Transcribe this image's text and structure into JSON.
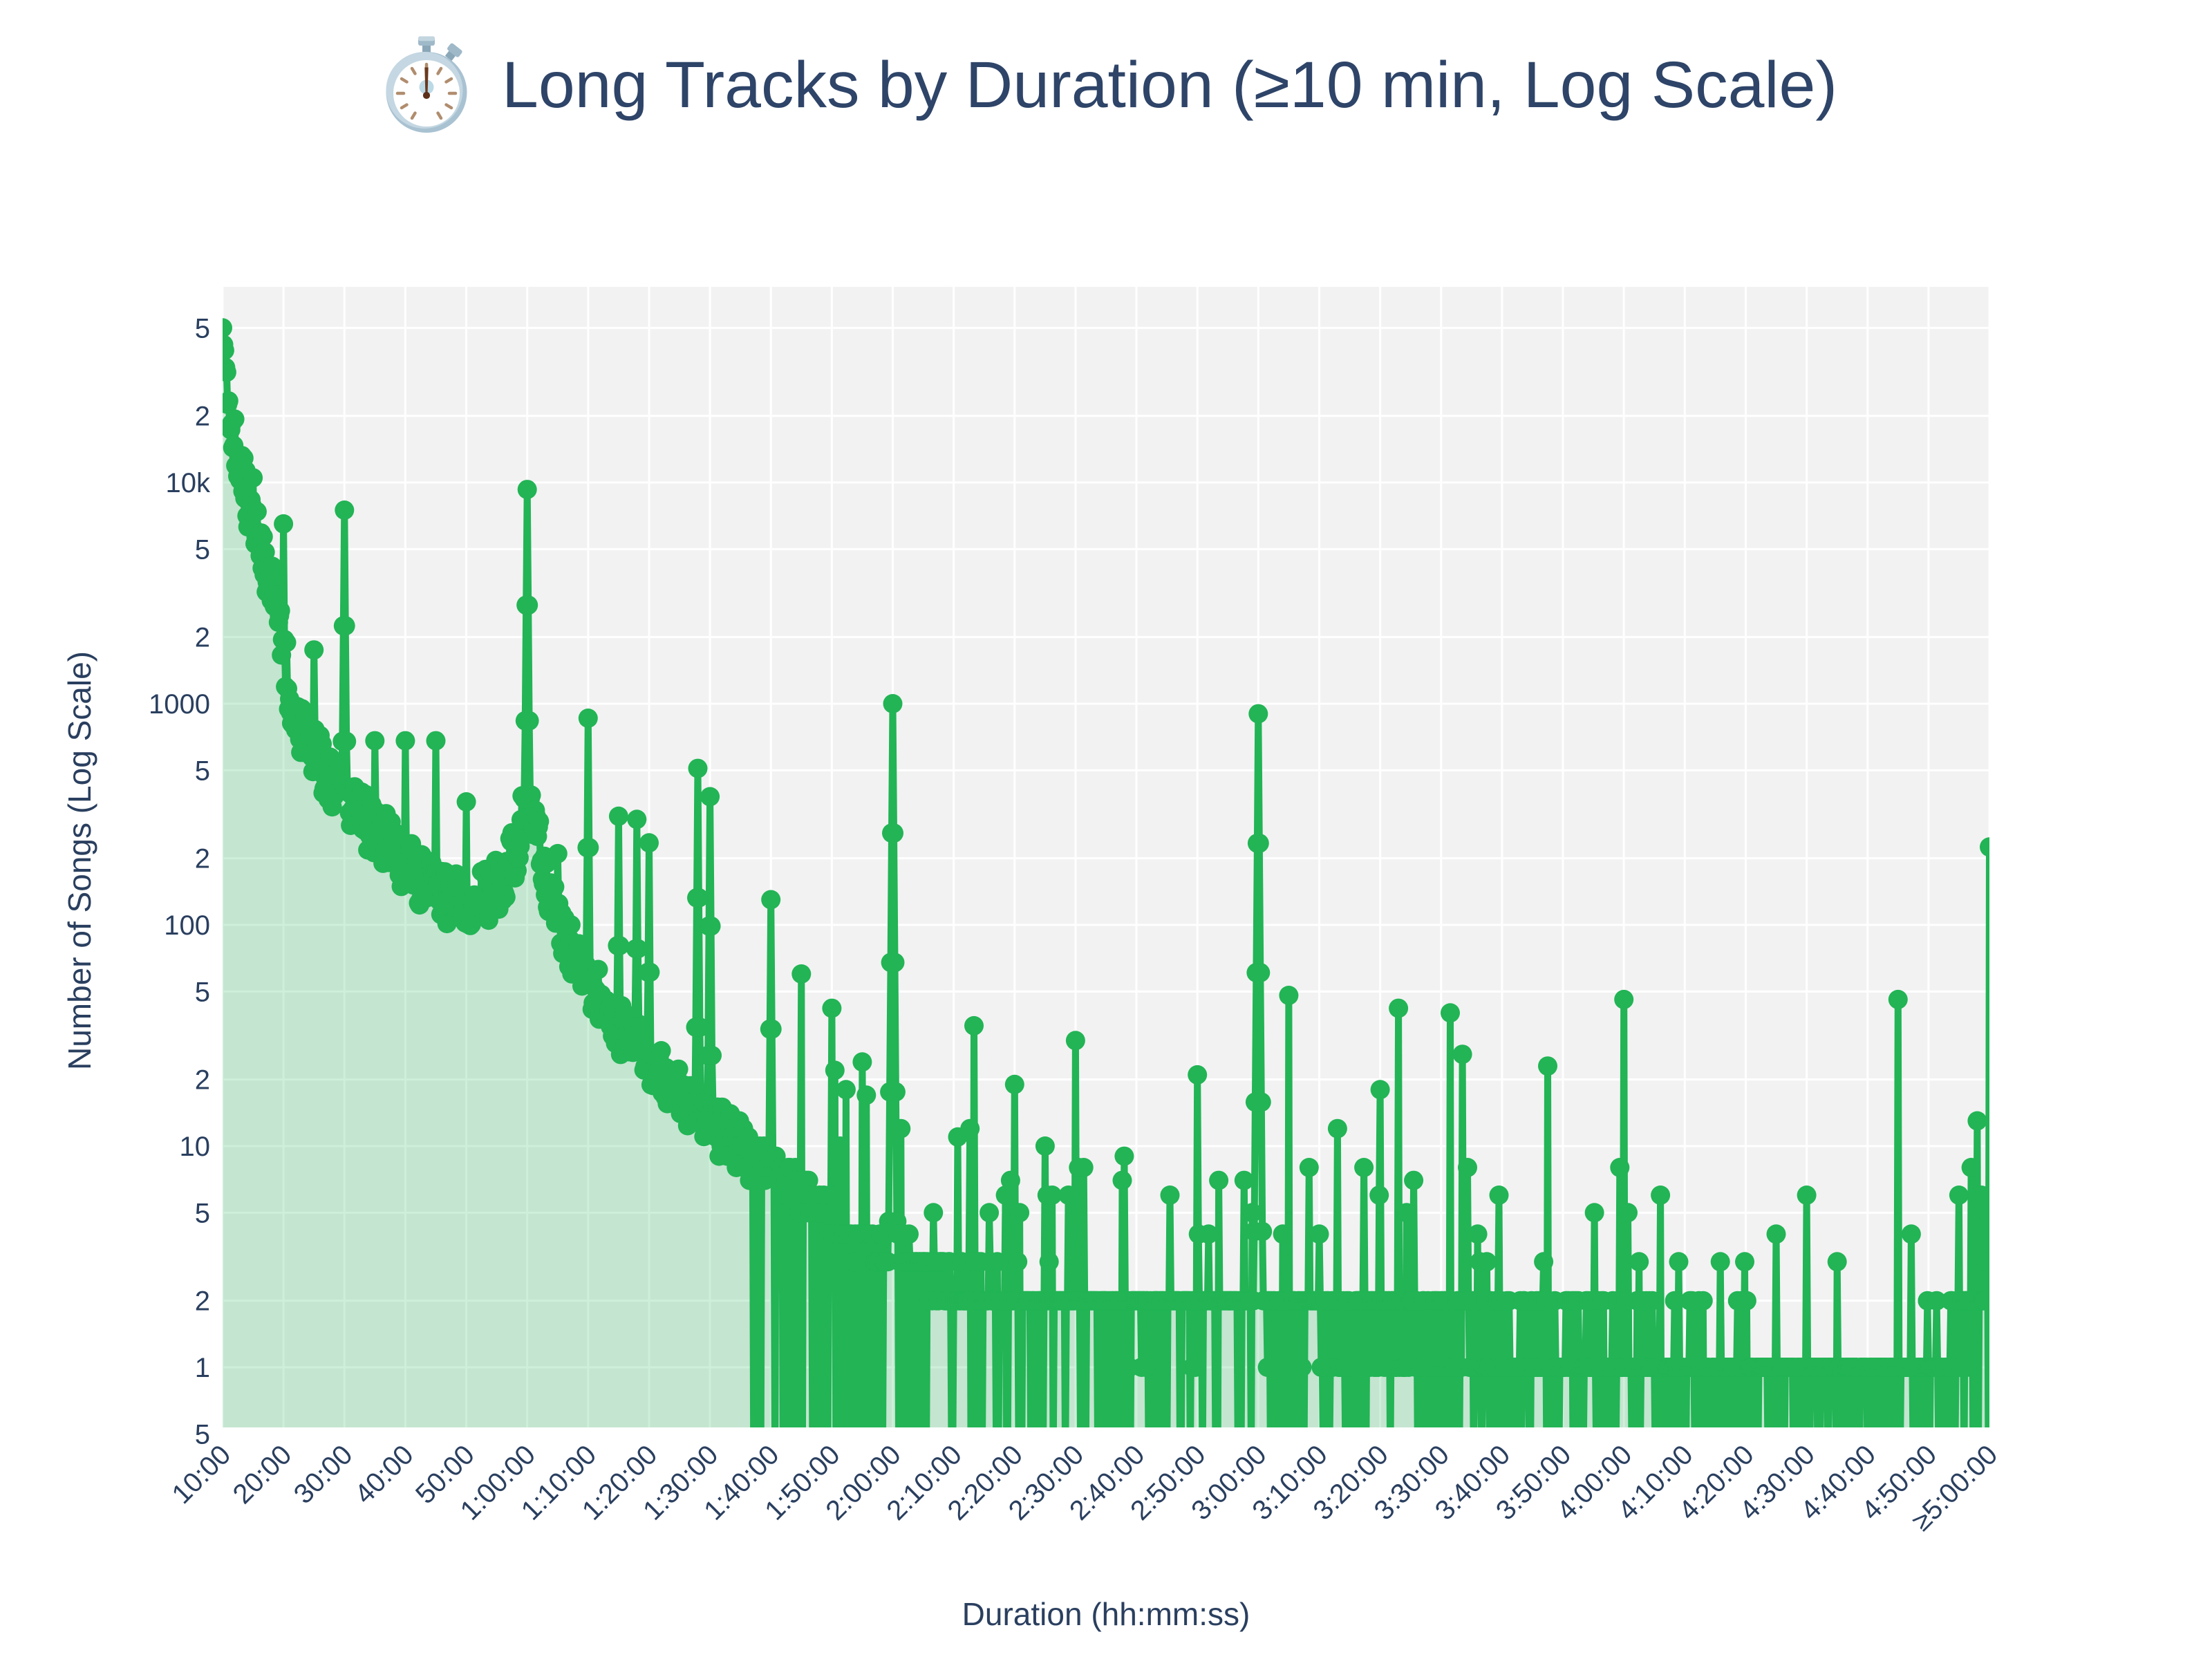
{
  "title": {
    "icon": "stopwatch",
    "text": "Long Tracks by Duration (≥10 min, Log Scale)"
  },
  "axes": {
    "x": {
      "title": "Duration (hh:mm:ss)",
      "tick_angle_deg": -45,
      "ticks": [
        {
          "s": 600,
          "label": "10:00"
        },
        {
          "s": 1200,
          "label": "20:00"
        },
        {
          "s": 1800,
          "label": "30:00"
        },
        {
          "s": 2400,
          "label": "40:00"
        },
        {
          "s": 3000,
          "label": "50:00"
        },
        {
          "s": 3600,
          "label": "1:00:00"
        },
        {
          "s": 4200,
          "label": "1:10:00"
        },
        {
          "s": 4800,
          "label": "1:20:00"
        },
        {
          "s": 5400,
          "label": "1:30:00"
        },
        {
          "s": 6000,
          "label": "1:40:00"
        },
        {
          "s": 6600,
          "label": "1:50:00"
        },
        {
          "s": 7200,
          "label": "2:00:00"
        },
        {
          "s": 7800,
          "label": "2:10:00"
        },
        {
          "s": 8400,
          "label": "2:20:00"
        },
        {
          "s": 9000,
          "label": "2:30:00"
        },
        {
          "s": 9600,
          "label": "2:40:00"
        },
        {
          "s": 10200,
          "label": "2:50:00"
        },
        {
          "s": 10800,
          "label": "3:00:00"
        },
        {
          "s": 11400,
          "label": "3:10:00"
        },
        {
          "s": 12000,
          "label": "3:20:00"
        },
        {
          "s": 12600,
          "label": "3:30:00"
        },
        {
          "s": 13200,
          "label": "3:40:00"
        },
        {
          "s": 13800,
          "label": "3:50:00"
        },
        {
          "s": 14400,
          "label": "4:00:00"
        },
        {
          "s": 15000,
          "label": "4:10:00"
        },
        {
          "s": 15600,
          "label": "4:20:00"
        },
        {
          "s": 16200,
          "label": "4:30:00"
        },
        {
          "s": 16800,
          "label": "4:40:00"
        },
        {
          "s": 17400,
          "label": "4:50:00"
        },
        {
          "s": 18000,
          "label": "≥5:00:00"
        }
      ]
    },
    "y": {
      "title": "Number of Songs (Log Scale)",
      "scale": "log",
      "ticks": [
        {
          "v": 50000,
          "label": "5"
        },
        {
          "v": 20000,
          "label": "2"
        },
        {
          "v": 10000,
          "label": "10k"
        },
        {
          "v": 5000,
          "label": "5"
        },
        {
          "v": 2000,
          "label": "2"
        },
        {
          "v": 1000,
          "label": "1000"
        },
        {
          "v": 500,
          "label": "5"
        },
        {
          "v": 200,
          "label": "2"
        },
        {
          "v": 100,
          "label": "100"
        },
        {
          "v": 50,
          "label": "5"
        },
        {
          "v": 20,
          "label": "2"
        },
        {
          "v": 10,
          "label": "10"
        },
        {
          "v": 5,
          "label": "5"
        },
        {
          "v": 2,
          "label": "2"
        },
        {
          "v": 1,
          "label": "1"
        },
        {
          "v": 0.5,
          "label": "5"
        }
      ]
    }
  },
  "colors": {
    "paper_bg": "#ffffff",
    "plot_bg": "#f2f2f2",
    "grid": "#ffffff",
    "line": "#22b455",
    "fill": "rgba(34,180,85,0.22)",
    "text": "#2a3f5f",
    "title_text": "#2e4468"
  },
  "chart_data": {
    "type": "line",
    "mode": "lines+markers+area",
    "title": "⏱️ Long Tracks by Duration (≥10 min, Log Scale)",
    "xlabel": "Duration (hh:mm:ss)",
    "ylabel": "Number of Songs (Log Scale)",
    "x_unit": "seconds of track duration",
    "bin_seconds": 10,
    "x_range": [
      600,
      18000
    ],
    "y_axis_log": true,
    "y_view_range": [
      0.53,
      77000
    ],
    "grid": true,
    "legend": false,
    "envelope_points": [
      [
        600,
        50000
      ],
      [
        615,
        41000
      ],
      [
        630,
        34000
      ],
      [
        650,
        27000
      ],
      [
        675,
        21500
      ],
      [
        700,
        17800
      ],
      [
        730,
        14600
      ],
      [
        760,
        12400
      ],
      [
        790,
        10700
      ],
      [
        820,
        9300
      ],
      [
        850,
        8200
      ],
      [
        880,
        7300
      ],
      [
        910,
        6500
      ],
      [
        950,
        5600
      ],
      [
        990,
        4850
      ],
      [
        1030,
        4150
      ],
      [
        1070,
        3500
      ],
      [
        1110,
        2900
      ],
      [
        1150,
        2350
      ],
      [
        1190,
        1850
      ],
      [
        1230,
        1420
      ],
      [
        1270,
        1120
      ],
      [
        1320,
        900
      ],
      [
        1380,
        770
      ],
      [
        1440,
        670
      ],
      [
        1520,
        580
      ],
      [
        1600,
        520
      ],
      [
        1700,
        440
      ],
      [
        1800,
        375
      ],
      [
        1900,
        330
      ],
      [
        2000,
        300
      ],
      [
        2100,
        280
      ],
      [
        2200,
        250
      ],
      [
        2300,
        215
      ],
      [
        2400,
        190
      ],
      [
        2520,
        163
      ],
      [
        2640,
        148
      ],
      [
        2760,
        138
      ],
      [
        2880,
        131
      ],
      [
        3000,
        132
      ],
      [
        3120,
        135
      ],
      [
        3240,
        142
      ],
      [
        3360,
        165
      ],
      [
        3480,
        215
      ],
      [
        3560,
        300
      ],
      [
        3600,
        335
      ],
      [
        3650,
        290
      ],
      [
        3720,
        225
      ],
      [
        3790,
        165
      ],
      [
        3860,
        122
      ],
      [
        3960,
        92
      ],
      [
        4060,
        74
      ],
      [
        4160,
        61
      ],
      [
        4260,
        51
      ],
      [
        4380,
        42
      ],
      [
        4500,
        35
      ],
      [
        4620,
        30
      ],
      [
        4740,
        26
      ],
      [
        4860,
        22.5
      ],
      [
        4980,
        19.5
      ],
      [
        5100,
        17
      ],
      [
        5220,
        15.2
      ],
      [
        5340,
        13.8
      ],
      [
        5460,
        12.4
      ],
      [
        5580,
        11
      ],
      [
        5700,
        9.9
      ],
      [
        5820,
        8.9
      ],
      [
        5940,
        8
      ],
      [
        6060,
        7.2
      ],
      [
        6180,
        6.5
      ],
      [
        6300,
        5.9
      ],
      [
        6420,
        5.3
      ],
      [
        6540,
        4.8
      ],
      [
        6660,
        4.4
      ],
      [
        6780,
        4.0
      ],
      [
        6900,
        3.7
      ],
      [
        7020,
        3.4
      ],
      [
        7140,
        3.2
      ],
      [
        7260,
        3.2
      ],
      [
        7380,
        3.0
      ],
      [
        7500,
        2.8
      ],
      [
        7620,
        2.65
      ],
      [
        7740,
        2.5
      ],
      [
        7860,
        2.4
      ],
      [
        7980,
        2.3
      ],
      [
        8100,
        2.2
      ],
      [
        8220,
        2.15
      ],
      [
        8340,
        2.1
      ],
      [
        8460,
        2.05
      ],
      [
        8580,
        2.0
      ],
      [
        8700,
        2.0
      ],
      [
        8940,
        1.95
      ],
      [
        9180,
        1.9
      ],
      [
        9420,
        1.85
      ],
      [
        9660,
        1.8
      ],
      [
        9900,
        1.8
      ],
      [
        10140,
        1.8
      ],
      [
        10380,
        1.85
      ],
      [
        10620,
        1.9
      ],
      [
        10860,
        1.85
      ],
      [
        11100,
        1.8
      ],
      [
        11340,
        1.7
      ],
      [
        11580,
        1.65
      ],
      [
        11820,
        1.6
      ],
      [
        12060,
        1.6
      ],
      [
        12300,
        1.55
      ],
      [
        12540,
        1.5
      ],
      [
        12780,
        1.5
      ],
      [
        13020,
        1.45
      ],
      [
        13260,
        1.45
      ],
      [
        13500,
        1.4
      ],
      [
        13740,
        1.4
      ],
      [
        13980,
        1.35
      ],
      [
        14220,
        1.35
      ],
      [
        14460,
        1.3
      ],
      [
        14700,
        1.3
      ],
      [
        14940,
        1.3
      ],
      [
        15180,
        1.25
      ],
      [
        15420,
        1.25
      ],
      [
        15660,
        1.2
      ],
      [
        15900,
        1.2
      ],
      [
        16140,
        1.2
      ],
      [
        16380,
        1.15
      ],
      [
        16620,
        1.15
      ],
      [
        16860,
        1.15
      ],
      [
        17100,
        1.15
      ],
      [
        17340,
        1.2
      ],
      [
        17580,
        1.3
      ],
      [
        17760,
        1.5
      ],
      [
        17880,
        1.8
      ],
      [
        17990,
        2.2
      ]
    ],
    "spikes": [
      [
        900,
        10500
      ],
      [
        1200,
        6500
      ],
      [
        1500,
        1750
      ],
      [
        1800,
        7500
      ],
      [
        2100,
        680
      ],
      [
        2400,
        680
      ],
      [
        2700,
        680
      ],
      [
        3000,
        360
      ],
      [
        3600,
        9300
      ],
      [
        3900,
        210
      ],
      [
        4200,
        860
      ],
      [
        4500,
        310
      ],
      [
        4680,
        300
      ],
      [
        4800,
        235
      ],
      [
        5280,
        510
      ],
      [
        5400,
        380
      ],
      [
        6000,
        130
      ],
      [
        6300,
        60
      ],
      [
        6600,
        42
      ],
      [
        6900,
        24
      ],
      [
        7200,
        1000
      ],
      [
        8000,
        35
      ],
      [
        8400,
        19
      ],
      [
        9000,
        30
      ],
      [
        9480,
        9
      ],
      [
        10200,
        21
      ],
      [
        10800,
        900
      ],
      [
        11100,
        48
      ],
      [
        11580,
        12
      ],
      [
        12000,
        18
      ],
      [
        12180,
        42
      ],
      [
        12690,
        40
      ],
      [
        12810,
        26
      ],
      [
        13650,
        23
      ],
      [
        14400,
        46
      ],
      [
        14760,
        6
      ],
      [
        15350,
        3
      ],
      [
        16200,
        6
      ],
      [
        17100,
        46
      ],
      [
        17820,
        8
      ],
      [
        17880,
        13
      ]
    ],
    "terminal_point": {
      "x": 18000,
      "label": "≥5:00:00",
      "value": 225
    },
    "first_point": {
      "x": 600,
      "label": "10:00",
      "value": 50000
    },
    "scatter_model": {
      "noise_log10_amp": [
        [
          600,
          0.13
        ],
        [
          3600,
          0.12
        ],
        [
          6000,
          0.1
        ]
      ],
      "integer_counts_after_s": 5400,
      "minor_spike_prob_after_s": 6600,
      "minor_spike_prob": 0.05,
      "zero_dropout": [
        [
          5820,
          0.28
        ],
        [
          7140,
          0.12
        ],
        [
          10700,
          0.18
        ],
        [
          14000,
          0.22
        ]
      ]
    }
  }
}
